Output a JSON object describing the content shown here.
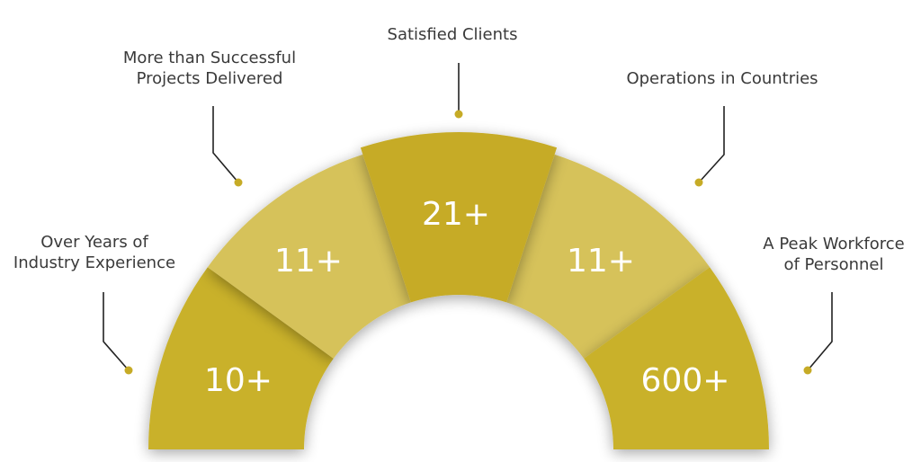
{
  "segments": [
    {
      "value": "10+",
      "label": [
        "Over Years of",
        "Industry Experience"
      ]
    },
    {
      "value": "11+",
      "label": [
        "More than Successful",
        "Projects Delivered"
      ]
    },
    {
      "value": "21+",
      "label": [
        "Satisfied Clients"
      ]
    },
    {
      "value": "11+",
      "label": [
        "Operations in Countries"
      ]
    },
    {
      "value": "600+",
      "label": [
        "A Peak Workforce",
        "of  Personnel"
      ]
    }
  ]
}
